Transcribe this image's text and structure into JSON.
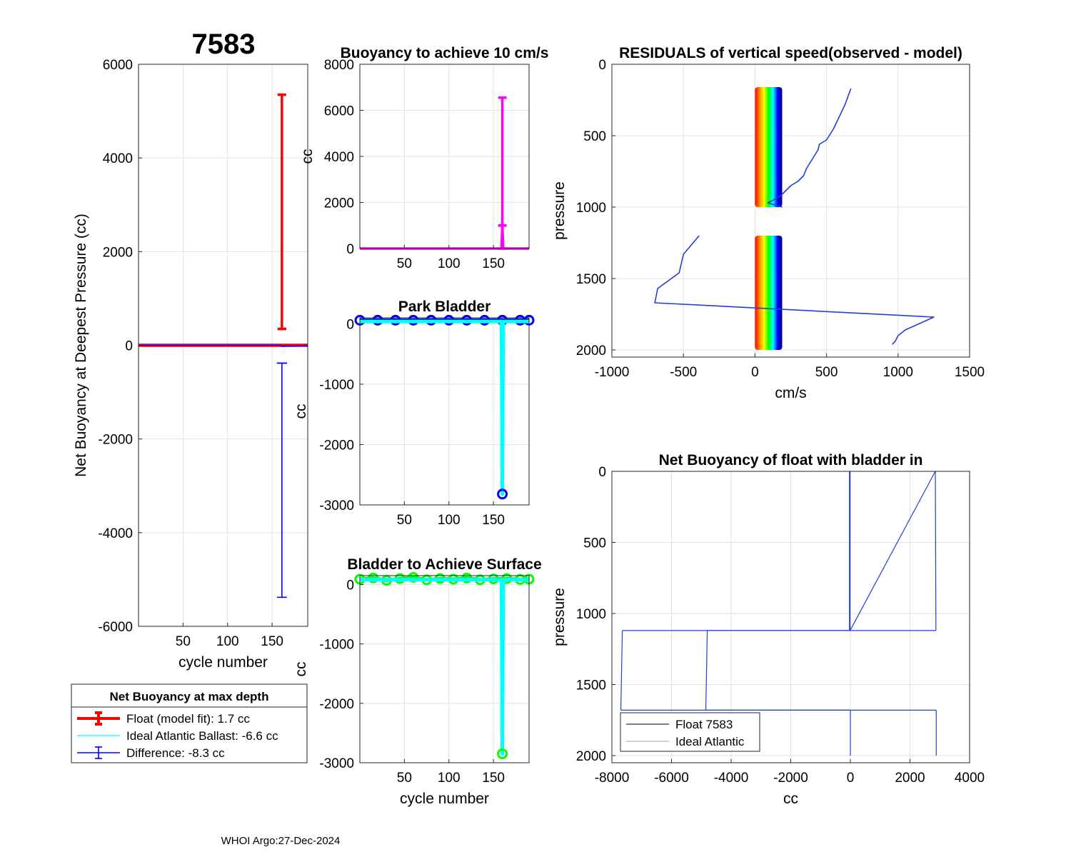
{
  "figure": {
    "title": "7583",
    "footer": "WHOI Argo:27-Dec-2024"
  },
  "colors": {
    "float": "#ff0000",
    "difference": "#0000ff",
    "ideal": "#00ffff",
    "buoyancy": "#ff00ff",
    "surface": "#00ff00",
    "profile_line": "#1f3fd8"
  },
  "chart_data": [
    {
      "id": "net_buoyancy_deepest",
      "type": "line",
      "title": "",
      "xlabel": "cycle number",
      "ylabel": "Net Buoyancy at Deepest Pressure (cc)",
      "xlim": [
        0,
        190
      ],
      "ylim": [
        -6000,
        6000
      ],
      "xticks": [
        50,
        100,
        150
      ],
      "yticks": [
        -6000,
        -4000,
        -2000,
        0,
        2000,
        4000,
        6000
      ],
      "grid": true,
      "series": [
        {
          "name": "Float (model fit)",
          "color": "#ff0000",
          "x": [
            0,
            160,
            161,
            190
          ],
          "y": [
            0,
            0,
            0,
            0
          ],
          "errorbar": {
            "x": 161,
            "y": 350,
            "lower": 350,
            "upper": 5350
          }
        },
        {
          "name": "Difference",
          "color": "#0000ff",
          "x": [
            0,
            160,
            161,
            190
          ],
          "y": [
            0,
            0,
            -20,
            -10
          ],
          "errorbar": {
            "x": 161,
            "y": -380,
            "lower": -5380,
            "upper": -380
          }
        }
      ],
      "legend": {
        "title": "Net Buoyancy at max depth",
        "entries": [
          {
            "label": "Float (model fit):   1.7 cc",
            "color": "#ff0000",
            "style": "errorbar-thick"
          },
          {
            "label": "Ideal Atlantic Ballast:  -6.6 cc",
            "color": "#00ffff",
            "style": "line"
          },
          {
            "label": "Difference:  -8.3 cc",
            "color": "#0000ff",
            "style": "errorbar"
          }
        ],
        "placement": "below-axes"
      }
    },
    {
      "id": "buoyancy_10cms",
      "type": "line",
      "title": "Buoyancy to achieve 10 cm/s",
      "xlabel": "",
      "ylabel": "cc",
      "xlim": [
        0,
        190
      ],
      "ylim": [
        0,
        8000
      ],
      "xticks": [
        50,
        100,
        150
      ],
      "yticks": [
        0,
        2000,
        4000,
        6000,
        8000
      ],
      "grid": true,
      "series": [
        {
          "name": "",
          "color": "#ff00ff",
          "x": [
            0,
            159,
            160,
            161,
            190
          ],
          "y": [
            0,
            0,
            1000,
            0,
            0
          ],
          "errorbar": {
            "x": 160,
            "y": 1000,
            "lower": 0,
            "upper": 6550
          }
        }
      ]
    },
    {
      "id": "park_bladder",
      "type": "line",
      "title": "Park Bladder",
      "xlabel": "",
      "ylabel": "cc",
      "xlim": [
        0,
        190
      ],
      "ylim": [
        -3000,
        100
      ],
      "xticks": [
        50,
        100,
        150
      ],
      "yticks": [
        -3000,
        -2000,
        -1000,
        0
      ],
      "grid": true,
      "series": [
        {
          "name": "",
          "color": "#0000ff",
          "marker": "o",
          "x": [
            0,
            20,
            40,
            60,
            80,
            100,
            120,
            140,
            160,
            180,
            190
          ],
          "y": [
            60,
            60,
            60,
            60,
            60,
            60,
            60,
            60,
            60,
            60,
            60
          ]
        },
        {
          "name": "",
          "color": "#00ffff",
          "x": [
            0,
            159,
            160,
            161,
            190
          ],
          "y": [
            40,
            40,
            -2820,
            40,
            40
          ]
        },
        {
          "name": "",
          "color": "#0000ff",
          "marker": "o",
          "x": [
            160
          ],
          "y": [
            -2820
          ]
        }
      ]
    },
    {
      "id": "bladder_surface",
      "type": "line",
      "title": "Bladder to Achieve Surface",
      "xlabel": "cycle number",
      "ylabel": "cc",
      "xlim": [
        0,
        190
      ],
      "ylim": [
        -3000,
        150
      ],
      "xticks": [
        50,
        100,
        150
      ],
      "yticks": [
        -3000,
        -2000,
        -1000,
        0
      ],
      "grid": true,
      "series": [
        {
          "name": "",
          "color": "#00ff00",
          "marker": "o",
          "x": [
            0,
            15,
            30,
            45,
            60,
            75,
            90,
            105,
            120,
            135,
            150,
            165,
            180,
            190
          ],
          "y": [
            90,
            110,
            70,
            100,
            120,
            80,
            100,
            90,
            110,
            80,
            95,
            100,
            85,
            90
          ]
        },
        {
          "name": "",
          "color": "#00ffff",
          "x": [
            0,
            159,
            160,
            161,
            190
          ],
          "y": [
            80,
            80,
            -2850,
            80,
            80
          ]
        },
        {
          "name": "",
          "color": "#00ff00",
          "marker": "o",
          "x": [
            160
          ],
          "y": [
            -2850
          ]
        }
      ]
    },
    {
      "id": "residuals",
      "type": "line",
      "title": "RESIDUALS of vertical speed(observed - model)",
      "xlabel": "cm/s",
      "ylabel": "pressure",
      "xlim": [
        -1000,
        1500
      ],
      "ylim": [
        0,
        2050
      ],
      "y_reversed": true,
      "xticks": [
        -1000,
        -500,
        0,
        500,
        1000,
        1500
      ],
      "yticks": [
        0,
        500,
        1000,
        1500,
        2000
      ],
      "grid": true,
      "rainbow_band": {
        "x": [
          0,
          190
        ],
        "segments": [
          [
            160,
            1000
          ],
          [
            1200,
            2000
          ]
        ],
        "colors": [
          "#ff0000",
          "#ff8800",
          "#ffff00",
          "#00ff00",
          "#00ffff",
          "#0000ff",
          "#00008b"
        ]
      },
      "series": [
        {
          "name": "",
          "color": "#1f3fd8",
          "x": [
            670,
            630,
            550,
            500,
            450,
            440,
            360,
            340,
            300,
            250,
            210,
            180,
            130,
            90,
            190
          ],
          "y": [
            170,
            280,
            450,
            530,
            560,
            600,
            730,
            780,
            820,
            850,
            890,
            920,
            950,
            970,
            1000
          ]
        },
        {
          "name": "",
          "color": "#1f3fd8",
          "x": [
            -390,
            -500,
            -530,
            -680,
            -700,
            1250,
            1050,
            1000,
            980,
            960
          ],
          "y": [
            1200,
            1330,
            1460,
            1570,
            1670,
            1770,
            1860,
            1900,
            1940,
            1960
          ]
        }
      ]
    },
    {
      "id": "net_buoyancy_bladder_in",
      "type": "line",
      "title": "Net Buoyancy of float with bladder in",
      "xlabel": "cc",
      "ylabel": "pressure",
      "xlim": [
        -8000,
        4000
      ],
      "ylim": [
        0,
        2050
      ],
      "y_reversed": true,
      "xticks": [
        -8000,
        -6000,
        -4000,
        -2000,
        0,
        2000,
        4000
      ],
      "yticks": [
        0,
        500,
        1000,
        1500,
        2000
      ],
      "grid": true,
      "series": [
        {
          "name": "Float 7583",
          "color": "#1f3fd8",
          "x": [
            -10,
            -10,
            2850,
            2870,
            -4800,
            -4850,
            2880,
            2880
          ],
          "y": [
            0,
            1120,
            0,
            1120,
            1120,
            1680,
            1680,
            2000
          ]
        },
        {
          "name": "Ideal Atlantic",
          "color": "#1f3fd8",
          "x": [
            -30,
            -30,
            -7650,
            -7700,
            0,
            0
          ],
          "y": [
            0,
            1120,
            1120,
            1680,
            1680,
            2000
          ]
        }
      ],
      "legend": {
        "entries": [
          {
            "label": "Float 7583",
            "color": "#000000"
          },
          {
            "label": "Ideal Atlantic",
            "color": "#a0a0a0"
          }
        ],
        "placement": "bottom-left"
      }
    }
  ]
}
